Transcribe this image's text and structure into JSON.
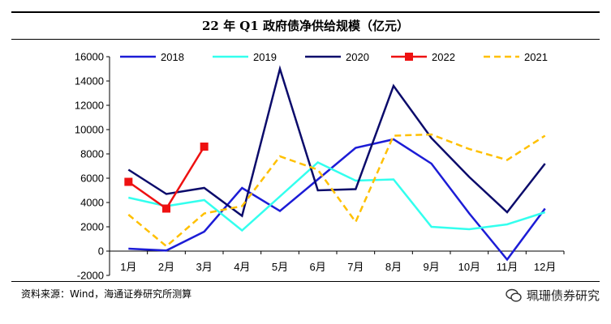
{
  "title": "22 年 Q1 政府债净供给规模（亿元）",
  "source_note": "资料来源：Wind，海通证券研究所测算",
  "watermark": "珮珊债券研究",
  "chart_data": {
    "type": "line",
    "title": "22 年 Q1 政府债净供给规模（亿元）",
    "xlabel": "",
    "ylabel": "",
    "ylim": [
      -2000,
      16000
    ],
    "yticks": [
      -2000,
      0,
      2000,
      4000,
      6000,
      8000,
      10000,
      12000,
      14000,
      16000
    ],
    "categories": [
      "1月",
      "2月",
      "3月",
      "4月",
      "5月",
      "6月",
      "7月",
      "8月",
      "9月",
      "10月",
      "11月",
      "12月"
    ],
    "legend": [
      "2018",
      "2019",
      "2020",
      "2022",
      "2021"
    ],
    "series": [
      {
        "name": "2018",
        "color": "#1c1cd6",
        "dash": "solid",
        "marker": "none",
        "values": [
          200,
          50,
          1600,
          5200,
          3300,
          5900,
          8500,
          9200,
          7200,
          3100,
          -700,
          3500
        ]
      },
      {
        "name": "2019",
        "color": "#33ffee",
        "dash": "solid",
        "marker": "none",
        "values": [
          4400,
          3700,
          4200,
          1700,
          4500,
          7300,
          5800,
          5900,
          2000,
          1800,
          2200,
          3200
        ]
      },
      {
        "name": "2020",
        "color": "#0b0b6b",
        "dash": "solid",
        "marker": "none",
        "values": [
          6700,
          4700,
          5200,
          2900,
          15000,
          5000,
          5100,
          13600,
          9300,
          6100,
          3200,
          7200
        ]
      },
      {
        "name": "2022",
        "color": "#ee1111",
        "dash": "solid",
        "marker": "square",
        "values": [
          5700,
          3500,
          8600,
          null,
          null,
          null,
          null,
          null,
          null,
          null,
          null,
          null
        ]
      },
      {
        "name": "2021",
        "color": "#ffc000",
        "dash": "dashed",
        "marker": "none",
        "values": [
          3000,
          400,
          3100,
          3700,
          7800,
          6700,
          2400,
          9500,
          9600,
          8400,
          7500,
          9500
        ]
      }
    ]
  }
}
